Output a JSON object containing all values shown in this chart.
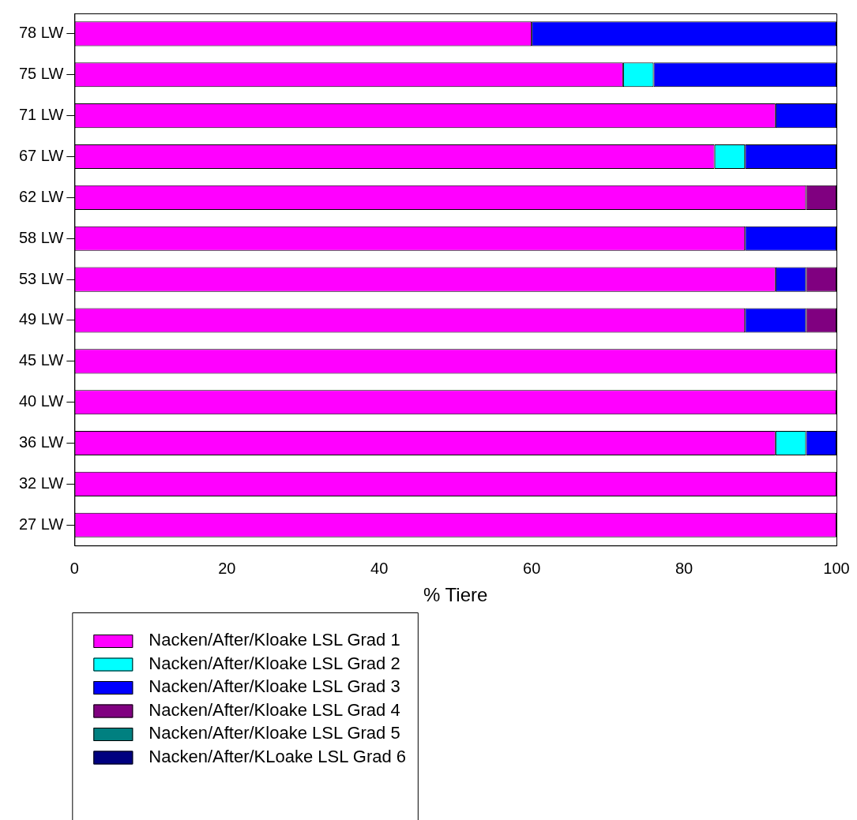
{
  "chart_data": {
    "type": "bar",
    "orientation": "horizontal",
    "stacked": true,
    "xlabel": "% Tiere",
    "legend": "bottom left",
    "grid": false,
    "categories": [
      "78 LW",
      "75 LW",
      "71 LW",
      "67 LW",
      "62 LW",
      "58 LW",
      "53 LW",
      "49 LW",
      "45 LW",
      "40 LW",
      "36 LW",
      "32 LW",
      "27 LW"
    ],
    "xlim": [
      0,
      100
    ],
    "xticks": [
      0,
      20,
      40,
      60,
      80,
      100
    ],
    "series": [
      {
        "name": "Nacken/After/Kloake LSL Grad 1",
        "color": "#ff00ff",
        "values": [
          60,
          72,
          92,
          84,
          96,
          88,
          92,
          88,
          100,
          100,
          92,
          100,
          100
        ]
      },
      {
        "name": "Nacken/After/Kloake LSL Grad 2",
        "color": "#00ffff",
        "values": [
          0,
          4,
          0,
          4,
          0,
          0,
          0,
          0,
          0,
          0,
          4,
          0,
          0
        ]
      },
      {
        "name": "Nacken/After/Kloake LSL Grad 3",
        "color": "#0000ff",
        "values": [
          40,
          24,
          8,
          12,
          0,
          12,
          4,
          8,
          0,
          0,
          4,
          0,
          0
        ]
      },
      {
        "name": "Nacken/After/Kloake LSL Grad 4",
        "color": "#800080",
        "values": [
          0,
          0,
          0,
          0,
          4,
          0,
          4,
          4,
          0,
          0,
          0,
          0,
          0
        ]
      },
      {
        "name": "Nacken/After/Kloake LSL Grad 5",
        "color": "#008080",
        "values": [
          0,
          0,
          0,
          0,
          0,
          0,
          0,
          0,
          0,
          0,
          0,
          0,
          0
        ]
      },
      {
        "name": "Nacken/After/KLoake LSL Grad 6",
        "color": "#000080",
        "values": [
          0,
          0,
          0,
          0,
          0,
          0,
          0,
          0,
          0,
          0,
          0,
          0,
          0
        ]
      }
    ]
  }
}
